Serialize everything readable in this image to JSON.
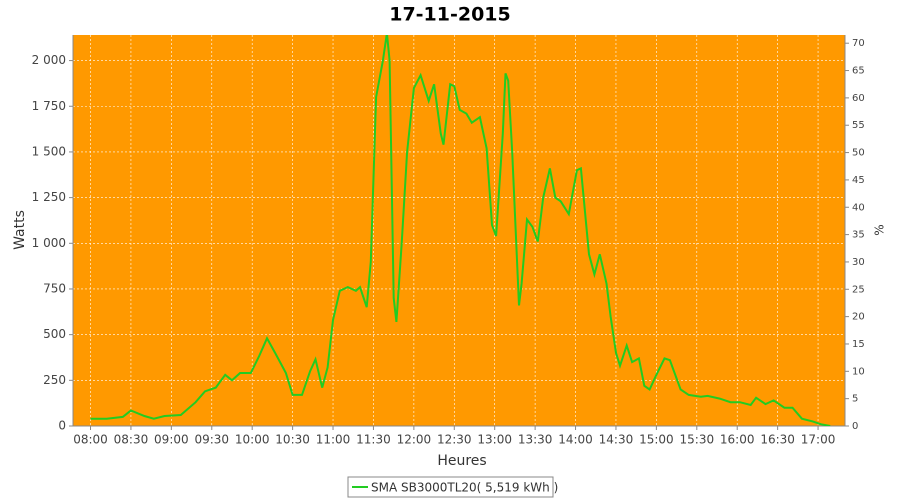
{
  "chart_data": {
    "type": "line",
    "title": "17-11-2015",
    "xlabel": "Heures",
    "ylabel": "Watts",
    "y2label": "%",
    "x": [
      480,
      492,
      504,
      510,
      520,
      527,
      535,
      547,
      558,
      565,
      573,
      580,
      585,
      591,
      599,
      605,
      611,
      617,
      625,
      630,
      637,
      643,
      647,
      652,
      656,
      660,
      665,
      671,
      677,
      680,
      685,
      688,
      692,
      697,
      700,
      702,
      705,
      707,
      711,
      715,
      720,
      725,
      731,
      735,
      740,
      742,
      747,
      750,
      754,
      759,
      763,
      769,
      774,
      778,
      781,
      786,
      788,
      790,
      793,
      798,
      800,
      804,
      808,
      812,
      816,
      821,
      825,
      829,
      835,
      841,
      844,
      850,
      854,
      858,
      863,
      866,
      870,
      873,
      878,
      882,
      887,
      891,
      895,
      900,
      906,
      910,
      918,
      924,
      933,
      938,
      947,
      955,
      962,
      970,
      974,
      981,
      987,
      995,
      1001,
      1008,
      1016,
      1022,
      1029
    ],
    "series": [
      {
        "name": "SMA SB3000TL20( 5,519 kWh )",
        "color": "#22cc22",
        "values": [
          40,
          40,
          50,
          85,
          55,
          40,
          55,
          60,
          130,
          190,
          210,
          280,
          250,
          290,
          290,
          380,
          480,
          400,
          290,
          170,
          170,
          300,
          365,
          210,
          320,
          580,
          740,
          760,
          740,
          760,
          650,
          900,
          1800,
          2000,
          2150,
          2000,
          700,
          570,
          1000,
          1500,
          1850,
          1920,
          1780,
          1870,
          1600,
          1540,
          1870,
          1860,
          1730,
          1710,
          1660,
          1690,
          1520,
          1100,
          1040,
          1600,
          1930,
          1890,
          1500,
          660,
          780,
          1130,
          1090,
          1010,
          1250,
          1410,
          1250,
          1230,
          1160,
          1400,
          1410,
          940,
          830,
          940,
          780,
          600,
          400,
          330,
          440,
          350,
          370,
          220,
          200,
          280,
          370,
          360,
          200,
          170,
          160,
          165,
          150,
          130,
          130,
          115,
          155,
          120,
          140,
          100,
          100,
          40,
          25,
          10,
          0
        ]
      }
    ],
    "xlim": [
      467,
      1040
    ],
    "xticks": [
      {
        "value": 480,
        "label": "08:00"
      },
      {
        "value": 510,
        "label": "08:30"
      },
      {
        "value": 540,
        "label": "09:00"
      },
      {
        "value": 570,
        "label": "09:30"
      },
      {
        "value": 600,
        "label": "10:00"
      },
      {
        "value": 630,
        "label": "10:30"
      },
      {
        "value": 660,
        "label": "11:00"
      },
      {
        "value": 690,
        "label": "11:30"
      },
      {
        "value": 720,
        "label": "12:00"
      },
      {
        "value": 750,
        "label": "12:30"
      },
      {
        "value": 780,
        "label": "13:00"
      },
      {
        "value": 810,
        "label": "13:30"
      },
      {
        "value": 840,
        "label": "14:00"
      },
      {
        "value": 870,
        "label": "14:30"
      },
      {
        "value": 900,
        "label": "15:00"
      },
      {
        "value": 930,
        "label": "15:30"
      },
      {
        "value": 960,
        "label": "16:00"
      },
      {
        "value": 990,
        "label": "16:30"
      },
      {
        "value": 1020,
        "label": "17:00"
      }
    ],
    "ylim": [
      0,
      2140
    ],
    "yticks": [
      0,
      250,
      500,
      750,
      {
        "value": 1000,
        "label": "1 000"
      },
      {
        "value": 1250,
        "label": "1 250"
      },
      {
        "value": 1500,
        "label": "1 500"
      },
      {
        "value": 1750,
        "label": "1 750"
      },
      {
        "value": 2000,
        "label": "2 000"
      }
    ],
    "y2lim": [
      0,
      71.5
    ],
    "y2ticks": [
      0,
      5,
      10,
      15,
      20,
      25,
      30,
      35,
      40,
      45,
      50,
      55,
      60,
      65,
      70
    ],
    "grid": true,
    "background": "#ff9900",
    "legend": "bottom"
  }
}
